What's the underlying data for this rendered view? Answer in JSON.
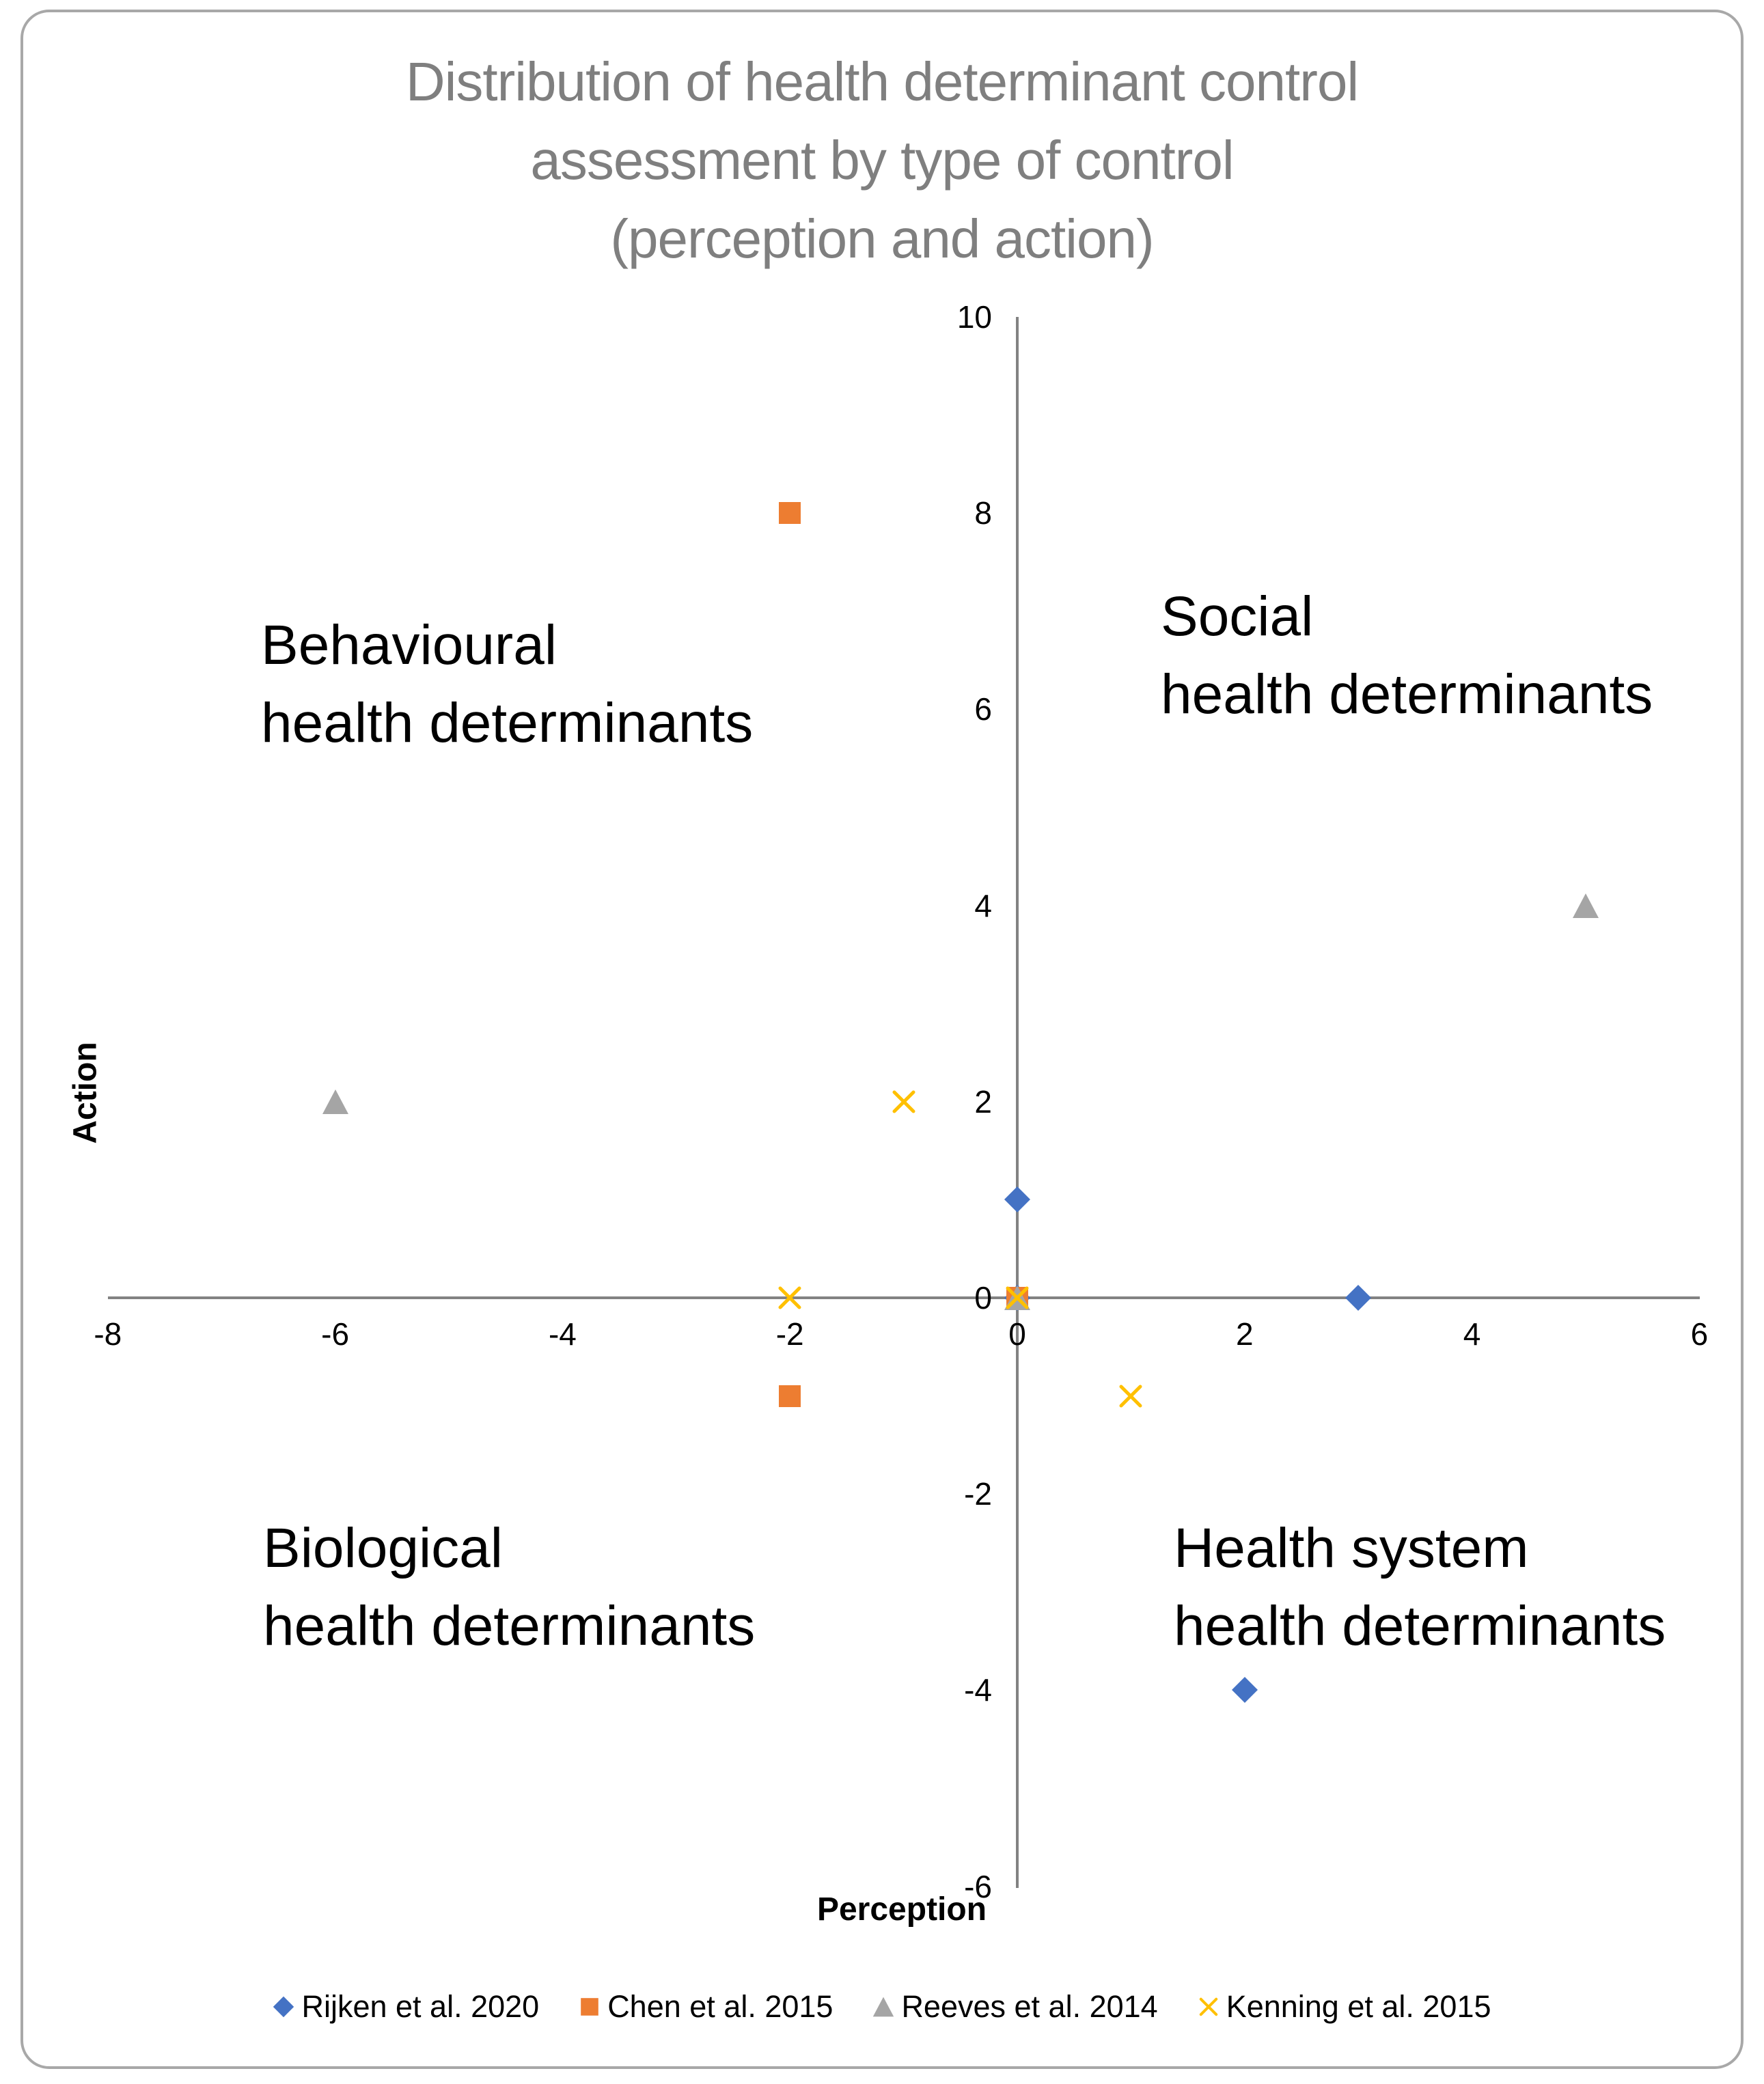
{
  "title": {
    "lines": [
      "Distribution of health determinant control",
      "assessment by type of control",
      "(perception and action)"
    ]
  },
  "axes": {
    "x_label": "Perception",
    "y_label": "Action",
    "x_ticks": [
      -8,
      -6,
      -4,
      -2,
      0,
      2,
      4,
      6
    ],
    "y_ticks": [
      10,
      8,
      6,
      4,
      2,
      0,
      -2,
      -4,
      -6
    ]
  },
  "quadrants": [
    {
      "position": "top-left",
      "lines": [
        "Behavioural",
        "health determinants"
      ]
    },
    {
      "position": "top-right",
      "lines": [
        "Social",
        "health determinants"
      ]
    },
    {
      "position": "bottom-left",
      "lines": [
        "Biological",
        "health determinants"
      ]
    },
    {
      "position": "bottom-right",
      "lines": [
        "Health system",
        "health determinants"
      ]
    }
  ],
  "colors": {
    "title_gray": "#7f7f7f",
    "axis_gray": "#828282",
    "rijken_blue": "#4472C4",
    "chen_orange": "#ED7D31",
    "reeves_gray": "#A5A5A5",
    "kenning_yellow": "#FFC000"
  },
  "chart_data": {
    "type": "scatter",
    "title": "Distribution of health determinant control assessment by type of control (perception and action)",
    "xlabel": "Perception",
    "ylabel": "Action",
    "xlim": [
      -8,
      6
    ],
    "ylim": [
      -6,
      10
    ],
    "grid": false,
    "legend_position": "bottom",
    "series": [
      {
        "name": "Rijken et al. 2020",
        "marker": "diamond",
        "color": "#4472C4",
        "points": [
          [
            0,
            1
          ],
          [
            0,
            0
          ],
          [
            3,
            0
          ],
          [
            2,
            -4
          ]
        ]
      },
      {
        "name": "Chen et al. 2015",
        "marker": "square",
        "color": "#ED7D31",
        "points": [
          [
            -2,
            8
          ],
          [
            0,
            0
          ],
          [
            -2,
            -1
          ]
        ]
      },
      {
        "name": "Reeves et al. 2014",
        "marker": "triangle",
        "color": "#A5A5A5",
        "points": [
          [
            -6,
            2
          ],
          [
            5,
            4
          ],
          [
            0,
            0
          ]
        ]
      },
      {
        "name": "Kenning et al. 2015",
        "marker": "x",
        "color": "#FFC000",
        "points": [
          [
            -1,
            2
          ],
          [
            -2,
            0
          ],
          [
            0,
            0
          ],
          [
            1,
            -1
          ]
        ]
      }
    ]
  }
}
